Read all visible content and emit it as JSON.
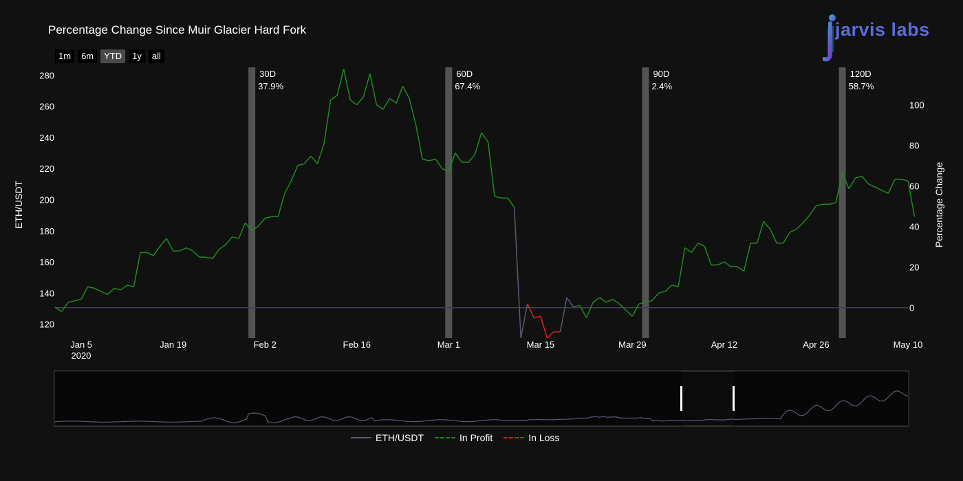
{
  "title": "Percentage Change Since Muir Glacier Hard Fork",
  "range_buttons": [
    {
      "label": "1m",
      "active": false
    },
    {
      "label": "6m",
      "active": false
    },
    {
      "label": "YTD",
      "active": true
    },
    {
      "label": "1y",
      "active": false
    },
    {
      "label": "all",
      "active": false
    }
  ],
  "logo": {
    "text": "jarvis labs"
  },
  "legend": [
    {
      "label": "ETH/USDT",
      "color": "#5b5a73",
      "style": "solid"
    },
    {
      "label": "In Profit",
      "color": "#1f8b1f",
      "style": "dashed"
    },
    {
      "label": "In Loss",
      "color": "#e0201c",
      "style": "dashed"
    }
  ],
  "colors": {
    "background": "#111111",
    "price_line": "#5b5a73",
    "profit": "#1f8b1f",
    "loss": "#e0201c",
    "marker_band": "#8a8a8a",
    "zero_line": "#3a3f4e"
  },
  "chart_data": {
    "type": "line",
    "x_start": "2020-01-01",
    "x_end": "2020-05-10",
    "x_ticks": [
      {
        "label": "Jan 5",
        "date": "2020-01-05"
      },
      {
        "label": "Jan 19",
        "date": "2020-01-19"
      },
      {
        "label": "Feb 2",
        "date": "2020-02-02"
      },
      {
        "label": "Feb 16",
        "date": "2020-02-16"
      },
      {
        "label": "Mar 1",
        "date": "2020-03-01"
      },
      {
        "label": "Mar 15",
        "date": "2020-03-15"
      },
      {
        "label": "Mar 29",
        "date": "2020-03-29"
      },
      {
        "label": "Apr 12",
        "date": "2020-04-12"
      },
      {
        "label": "Apr 26",
        "date": "2020-04-26"
      },
      {
        "label": "May 10",
        "date": "2020-05-10"
      }
    ],
    "x_year_label": "2020",
    "y_left": {
      "label": "ETH/USDT",
      "range": [
        111,
        285
      ],
      "ticks": [
        120,
        140,
        160,
        180,
        200,
        220,
        240,
        260,
        280
      ]
    },
    "y_right": {
      "label": "Percentage Change",
      "range": [
        -15,
        118.5
      ],
      "ticks": [
        0,
        20,
        40,
        60,
        80,
        100
      ]
    },
    "series": [
      {
        "name": "ETH/USDT",
        "color": "#5b5a73",
        "values": [
          131,
          128,
          134,
          135,
          136,
          144,
          143,
          141,
          139,
          143,
          142,
          145,
          144,
          166,
          166,
          164,
          170,
          175,
          167,
          167,
          169,
          167,
          163,
          163,
          162,
          168,
          171,
          176,
          175,
          185,
          180,
          183,
          188,
          189,
          189,
          204,
          212,
          222,
          223,
          228,
          223,
          236,
          264,
          267,
          284,
          264,
          261,
          266,
          281,
          261,
          258,
          265,
          262,
          273,
          265,
          248,
          226,
          225,
          226,
          220,
          218,
          230,
          224,
          224,
          229,
          243,
          237,
          202,
          201,
          201,
          195,
          111,
          133,
          124,
          125,
          111,
          115,
          115,
          137,
          131,
          132,
          124,
          134,
          137,
          134,
          136,
          133,
          129,
          125,
          133,
          134,
          135,
          140,
          141,
          145,
          144,
          169,
          166,
          172,
          170,
          158,
          158,
          160,
          157,
          157,
          154,
          172,
          172,
          186,
          181,
          172,
          172,
          179,
          181,
          185,
          190,
          196,
          197,
          197,
          198,
          217,
          207,
          214,
          215,
          210,
          208,
          206,
          204,
          213,
          213,
          212,
          189
        ]
      },
      {
        "name": "In Profit",
        "color": "#1f8b1f",
        "dash": true
      },
      {
        "name": "In Loss",
        "color": "#e0201c",
        "dash": true
      }
    ],
    "markers": [
      {
        "label": "30D",
        "value": "37.9%",
        "date": "2020-01-31"
      },
      {
        "label": "60D",
        "value": "67.4%",
        "date": "2020-03-01"
      },
      {
        "label": "90D",
        "value": "2.4%",
        "date": "2020-03-31"
      },
      {
        "label": "120D",
        "value": "58.7%",
        "date": "2020-04-30"
      }
    ],
    "grid": false,
    "legend_position": "bottom",
    "range_slider": true
  }
}
